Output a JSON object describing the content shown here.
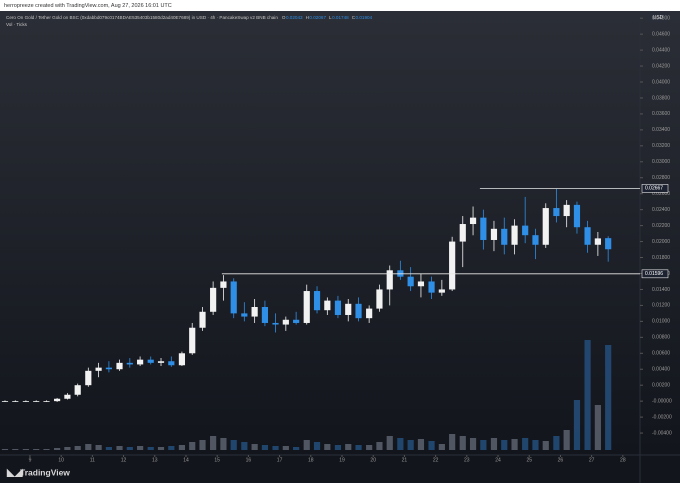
{
  "header": "herropreeze created with TradingView.com, Aug 27, 2026 16:01 UTC",
  "chart_data": {
    "type": "candlestick",
    "title": "Cero On Gold / Tether Gold on BSC (0xdabbd079c0174BDAE535403b1580d2ad40E7689) in USD · 4h · PancakeSwap v2 BNB chain",
    "ohlc_labels": [
      "O",
      "H",
      "L",
      "C"
    ],
    "ohlc_values": [
      0.02043,
      0.02067,
      0.01748,
      0.01904
    ],
    "volume_label": "Vol · Ticks",
    "currency": "USD",
    "brand": "TradingView",
    "up_color": "#f2f2f2",
    "down_color": "#2f8fe6",
    "x": [
      8.2,
      8.53,
      8.87,
      9.2,
      9.53,
      9.87,
      10.2,
      10.53,
      10.87,
      11.2,
      11.53,
      11.87,
      12.2,
      12.53,
      12.87,
      13.2,
      13.53,
      13.87,
      14.2,
      14.53,
      14.87,
      15.2,
      15.53,
      15.87,
      16.2,
      16.53,
      16.87,
      17.2,
      17.53,
      17.87,
      18.2,
      18.53,
      18.87,
      19.2,
      19.53,
      19.87,
      20.2,
      20.53,
      20.87,
      21.2,
      21.53,
      21.87,
      22.2,
      22.53,
      22.87,
      23.2,
      23.53,
      23.87,
      24.2,
      24.53,
      24.87,
      25.2,
      25.53,
      25.87,
      26.2,
      26.53,
      26.87,
      27.2,
      27.53
    ],
    "open": [
      0,
      0,
      0,
      0,
      0,
      0,
      0.0003,
      0.0008,
      0.002,
      0.0038,
      0.0042,
      0.004,
      0.0048,
      0.0046,
      0.0052,
      0.0048,
      0.005,
      0.0045,
      0.006,
      0.0092,
      0.0112,
      0.0142,
      0.015,
      0.011,
      0.0106,
      0.0118,
      0.0098,
      0.0096,
      0.0102,
      0.0098,
      0.0138,
      0.0114,
      0.0126,
      0.0108,
      0.0122,
      0.0104,
      0.0116,
      0.014,
      0.0164,
      0.0156,
      0.0144,
      0.015,
      0.0136,
      0.014,
      0.02,
      0.0222,
      0.023,
      0.0202,
      0.0216,
      0.0196,
      0.022,
      0.0208,
      0.0196,
      0.0242,
      0.0232,
      0.0246,
      0.0218,
      0.0196,
      0.02043
    ],
    "high": [
      0.0001,
      0.0001,
      0.0001,
      0.0001,
      0.0001,
      0.0004,
      0.001,
      0.0022,
      0.0042,
      0.0048,
      0.005,
      0.0052,
      0.0054,
      0.0056,
      0.0056,
      0.0054,
      0.0056,
      0.0062,
      0.0098,
      0.0118,
      0.015,
      0.0158,
      0.0154,
      0.0124,
      0.0128,
      0.0126,
      0.011,
      0.0106,
      0.0112,
      0.0146,
      0.0144,
      0.013,
      0.0132,
      0.0128,
      0.013,
      0.012,
      0.0146,
      0.017,
      0.0176,
      0.0168,
      0.016,
      0.0156,
      0.0152,
      0.0206,
      0.0232,
      0.0244,
      0.024,
      0.0226,
      0.023,
      0.0228,
      0.0256,
      0.0216,
      0.0248,
      0.0266,
      0.0252,
      0.025,
      0.0226,
      0.0212,
      0.02067
    ],
    "low": [
      -0.0001,
      -0.0001,
      -0.0001,
      -0.0001,
      -0.0001,
      -0.0001,
      0.0002,
      0.0006,
      0.0018,
      0.003,
      0.0036,
      0.0038,
      0.0042,
      0.0044,
      0.0046,
      0.0044,
      0.0043,
      0.0044,
      0.0058,
      0.0088,
      0.0108,
      0.0126,
      0.0104,
      0.01,
      0.0098,
      0.0094,
      0.0086,
      0.0088,
      0.0096,
      0.0096,
      0.011,
      0.0108,
      0.0104,
      0.01,
      0.01,
      0.0098,
      0.0112,
      0.012,
      0.0152,
      0.0138,
      0.013,
      0.0128,
      0.0132,
      0.0138,
      0.0168,
      0.0208,
      0.019,
      0.0188,
      0.0184,
      0.0184,
      0.0198,
      0.0178,
      0.0192,
      0.0224,
      0.0218,
      0.021,
      0.0186,
      0.0182,
      0.01748
    ],
    "close": [
      0,
      0,
      0,
      0,
      0,
      0.0003,
      0.0008,
      0.002,
      0.0038,
      0.0042,
      0.004,
      0.0048,
      0.0046,
      0.0052,
      0.0048,
      0.005,
      0.0045,
      0.006,
      0.0092,
      0.0112,
      0.0142,
      0.015,
      0.011,
      0.0106,
      0.0118,
      0.0098,
      0.0096,
      0.0102,
      0.0098,
      0.0138,
      0.0114,
      0.0126,
      0.0108,
      0.0122,
      0.0104,
      0.0116,
      0.014,
      0.0164,
      0.0156,
      0.0144,
      0.015,
      0.0136,
      0.014,
      0.02,
      0.0222,
      0.023,
      0.0202,
      0.0216,
      0.0196,
      0.022,
      0.0208,
      0.0196,
      0.0242,
      0.0232,
      0.0246,
      0.0218,
      0.0196,
      0.0204,
      0.01904
    ],
    "volume": [
      1,
      1,
      1,
      1,
      1,
      2,
      3,
      4,
      6,
      5,
      3,
      4,
      3,
      4,
      3,
      3,
      4,
      5,
      8,
      10,
      14,
      12,
      10,
      8,
      6,
      5,
      4,
      4,
      3,
      10,
      8,
      6,
      5,
      6,
      5,
      5,
      8,
      14,
      12,
      10,
      11,
      9,
      6,
      16,
      14,
      12,
      10,
      12,
      10,
      11,
      12,
      10,
      9,
      14,
      20,
      50,
      110,
      45,
      105
    ],
    "volume_ylim": [
      0,
      115
    ],
    "xlim": [
      8.04,
      28.55
    ],
    "xticks": [
      9,
      10,
      11,
      12,
      13,
      14,
      15,
      16,
      17,
      18,
      19,
      20,
      21,
      22,
      23,
      24,
      25,
      26,
      27,
      28
    ],
    "ylim": [
      -0.00675,
      0.0489
    ],
    "yticks": [
      {
        "value": -0.004,
        "label": "-0.00400"
      },
      {
        "value": -0.002,
        "label": "-0.00200"
      },
      {
        "value": 0,
        "label": "-0.00000"
      },
      {
        "value": 0.002,
        "label": "0.00200"
      },
      {
        "value": 0.004,
        "label": "0.00400"
      },
      {
        "value": 0.006,
        "label": "0.00600"
      },
      {
        "value": 0.008,
        "label": "0.00800"
      },
      {
        "value": 0.01,
        "label": "0.01000"
      },
      {
        "value": 0.012,
        "label": "0.01200"
      },
      {
        "value": 0.014,
        "label": "0.01400"
      },
      {
        "value": 0.016,
        "label": "0.01600"
      },
      {
        "value": 0.018,
        "label": "0.01800"
      },
      {
        "value": 0.02,
        "label": "0.02000"
      },
      {
        "value": 0.022,
        "label": "0.02200"
      },
      {
        "value": 0.024,
        "label": "0.02400"
      },
      {
        "value": 0.026,
        "label": "0.02600"
      },
      {
        "value": 0.028,
        "label": "0.02800"
      },
      {
        "value": 0.03,
        "label": "0.03000"
      },
      {
        "value": 0.032,
        "label": "0.03200"
      },
      {
        "value": 0.034,
        "label": "0.03400"
      },
      {
        "value": 0.036,
        "label": "0.03600"
      },
      {
        "value": 0.038,
        "label": "0.03800"
      },
      {
        "value": 0.04,
        "label": "0.04000"
      },
      {
        "value": 0.042,
        "label": "0.04200"
      },
      {
        "value": 0.044,
        "label": "0.04400"
      },
      {
        "value": 0.046,
        "label": "0.04600"
      },
      {
        "value": 0.048,
        "label": "0.04800"
      }
    ],
    "levels": [
      {
        "value": 0.02667,
        "label": "0.02667",
        "start": 23.42
      },
      {
        "value": 0.01596,
        "label": "0.01596",
        "start": 15.15
      }
    ]
  }
}
